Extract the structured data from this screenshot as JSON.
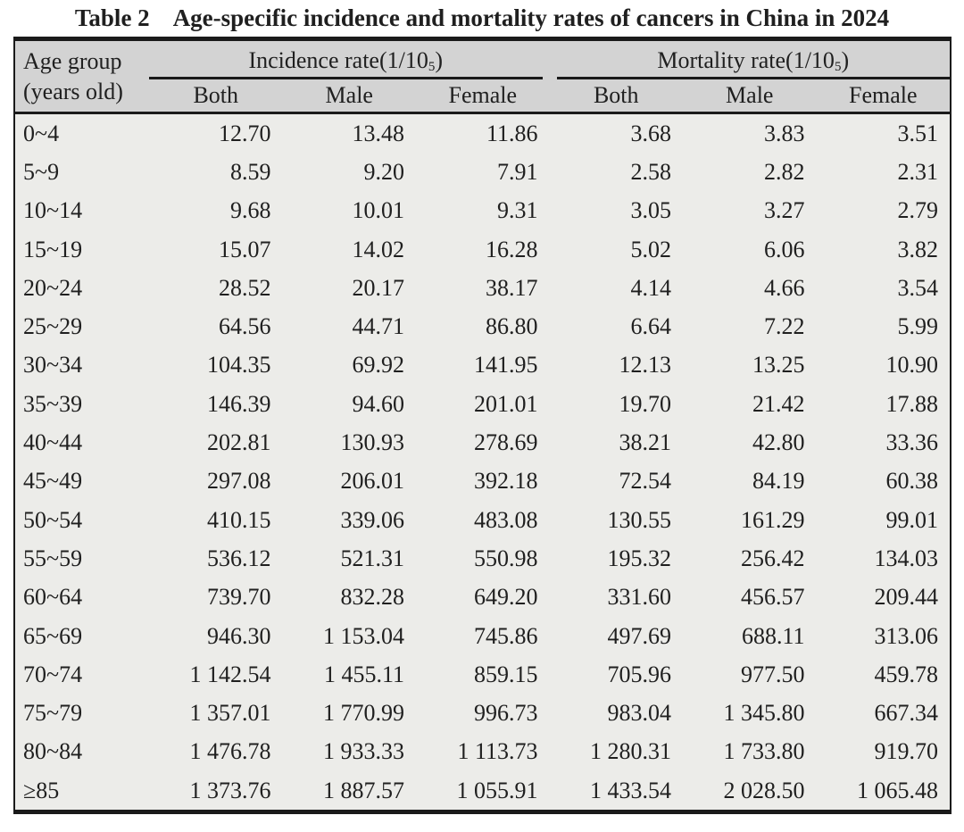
{
  "title": {
    "label": "Table 2",
    "text": "Age-specific incidence and mortality rates of cancers in China in 2024"
  },
  "table": {
    "age_header": {
      "line1": "Age group",
      "line2": "(years old)"
    },
    "groups": [
      {
        "prefix": "Incidence rate(1/10",
        "sup": "5",
        "suffix": ")"
      },
      {
        "prefix": "Mortality rate(1/10",
        "sup": "5",
        "suffix": ")"
      }
    ],
    "sub_headers": [
      "Both",
      "Male",
      "Female"
    ],
    "rows": [
      {
        "age": "0~4",
        "values": [
          "12.70",
          "13.48",
          "11.86",
          "3.68",
          "3.83",
          "3.51"
        ]
      },
      {
        "age": "5~9",
        "values": [
          "8.59",
          "9.20",
          "7.91",
          "2.58",
          "2.82",
          "2.31"
        ]
      },
      {
        "age": "10~14",
        "values": [
          "9.68",
          "10.01",
          "9.31",
          "3.05",
          "3.27",
          "2.79"
        ]
      },
      {
        "age": "15~19",
        "values": [
          "15.07",
          "14.02",
          "16.28",
          "5.02",
          "6.06",
          "3.82"
        ]
      },
      {
        "age": "20~24",
        "values": [
          "28.52",
          "20.17",
          "38.17",
          "4.14",
          "4.66",
          "3.54"
        ]
      },
      {
        "age": "25~29",
        "values": [
          "64.56",
          "44.71",
          "86.80",
          "6.64",
          "7.22",
          "5.99"
        ]
      },
      {
        "age": "30~34",
        "values": [
          "104.35",
          "69.92",
          "141.95",
          "12.13",
          "13.25",
          "10.90"
        ]
      },
      {
        "age": "35~39",
        "values": [
          "146.39",
          "94.60",
          "201.01",
          "19.70",
          "21.42",
          "17.88"
        ]
      },
      {
        "age": "40~44",
        "values": [
          "202.81",
          "130.93",
          "278.69",
          "38.21",
          "42.80",
          "33.36"
        ]
      },
      {
        "age": "45~49",
        "values": [
          "297.08",
          "206.01",
          "392.18",
          "72.54",
          "84.19",
          "60.38"
        ]
      },
      {
        "age": "50~54",
        "values": [
          "410.15",
          "339.06",
          "483.08",
          "130.55",
          "161.29",
          "99.01"
        ]
      },
      {
        "age": "55~59",
        "values": [
          "536.12",
          "521.31",
          "550.98",
          "195.32",
          "256.42",
          "134.03"
        ]
      },
      {
        "age": "60~64",
        "values": [
          "739.70",
          "832.28",
          "649.20",
          "331.60",
          "456.57",
          "209.44"
        ]
      },
      {
        "age": "65~69",
        "values": [
          "946.30",
          "1 153.04",
          "745.86",
          "497.69",
          "688.11",
          "313.06"
        ]
      },
      {
        "age": "70~74",
        "values": [
          "1 142.54",
          "1 455.11",
          "859.15",
          "705.96",
          "977.50",
          "459.78"
        ]
      },
      {
        "age": "75~79",
        "values": [
          "1 357.01",
          "1 770.99",
          "996.73",
          "983.04",
          "1 345.80",
          "667.34"
        ]
      },
      {
        "age": "80~84",
        "values": [
          "1 476.78",
          "1 933.33",
          "1 113.73",
          "1 280.31",
          "1 733.80",
          "919.70"
        ]
      },
      {
        "age": "≥85",
        "values": [
          "1 373.76",
          "1 887.57",
          "1 055.91",
          "1 433.54",
          "2 028.50",
          "1 065.48"
        ]
      }
    ]
  },
  "colors": {
    "page_bg": "#ffffff",
    "header_bg": "#d3d3d3",
    "body_bg": "#ecece9",
    "rule": "#1a1a1a",
    "text": "#1f1f1f"
  }
}
